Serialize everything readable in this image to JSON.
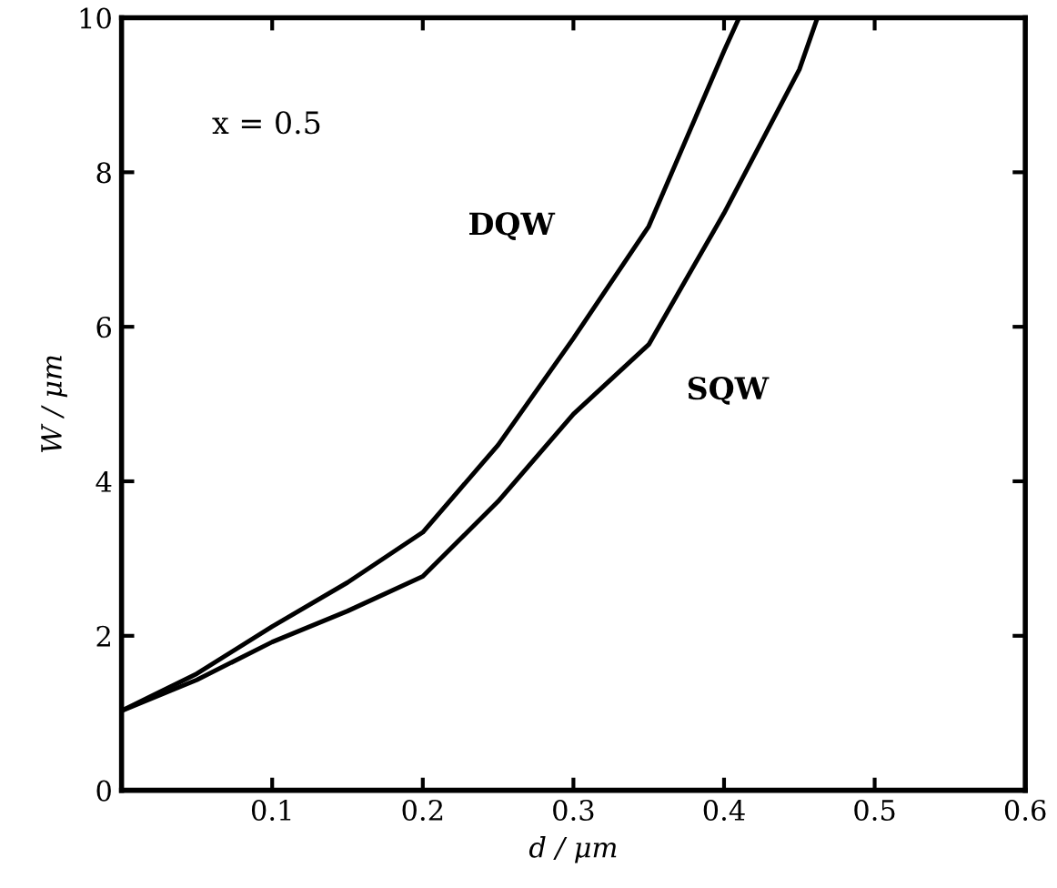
{
  "chart_data": {
    "type": "line",
    "xlabel": "d / μm",
    "ylabel": "W / μm",
    "annotations": [
      "x = 0.5"
    ],
    "xlim": [
      0,
      0.6
    ],
    "ylim": [
      0,
      10
    ],
    "xticks": [
      {
        "value": 0,
        "label": null
      },
      0.1,
      0.2,
      0.3,
      0.4,
      0.5,
      0.6
    ],
    "yticks": [
      0,
      2,
      4,
      6,
      8,
      10
    ],
    "grid": false,
    "legend": false,
    "marker": "none",
    "line_style": "solid",
    "series": [
      {
        "name": "DQW",
        "color": "#000000",
        "x": [
          0,
          0.05,
          0.1,
          0.15,
          0.2,
          0.25,
          0.3,
          0.35,
          0.4,
          0.41
        ],
        "values": [
          1.03,
          1.51,
          2.12,
          2.69,
          3.34,
          4.47,
          5.85,
          7.3,
          9.57,
          10
        ]
      },
      {
        "name": "SQW",
        "color": "#000000",
        "x": [
          0,
          0.05,
          0.1,
          0.15,
          0.2,
          0.25,
          0.3,
          0.35,
          0.4,
          0.45,
          0.462
        ],
        "values": [
          1.03,
          1.43,
          1.92,
          2.32,
          2.77,
          3.74,
          4.87,
          5.77,
          7.47,
          9.33,
          10
        ]
      }
    ]
  }
}
